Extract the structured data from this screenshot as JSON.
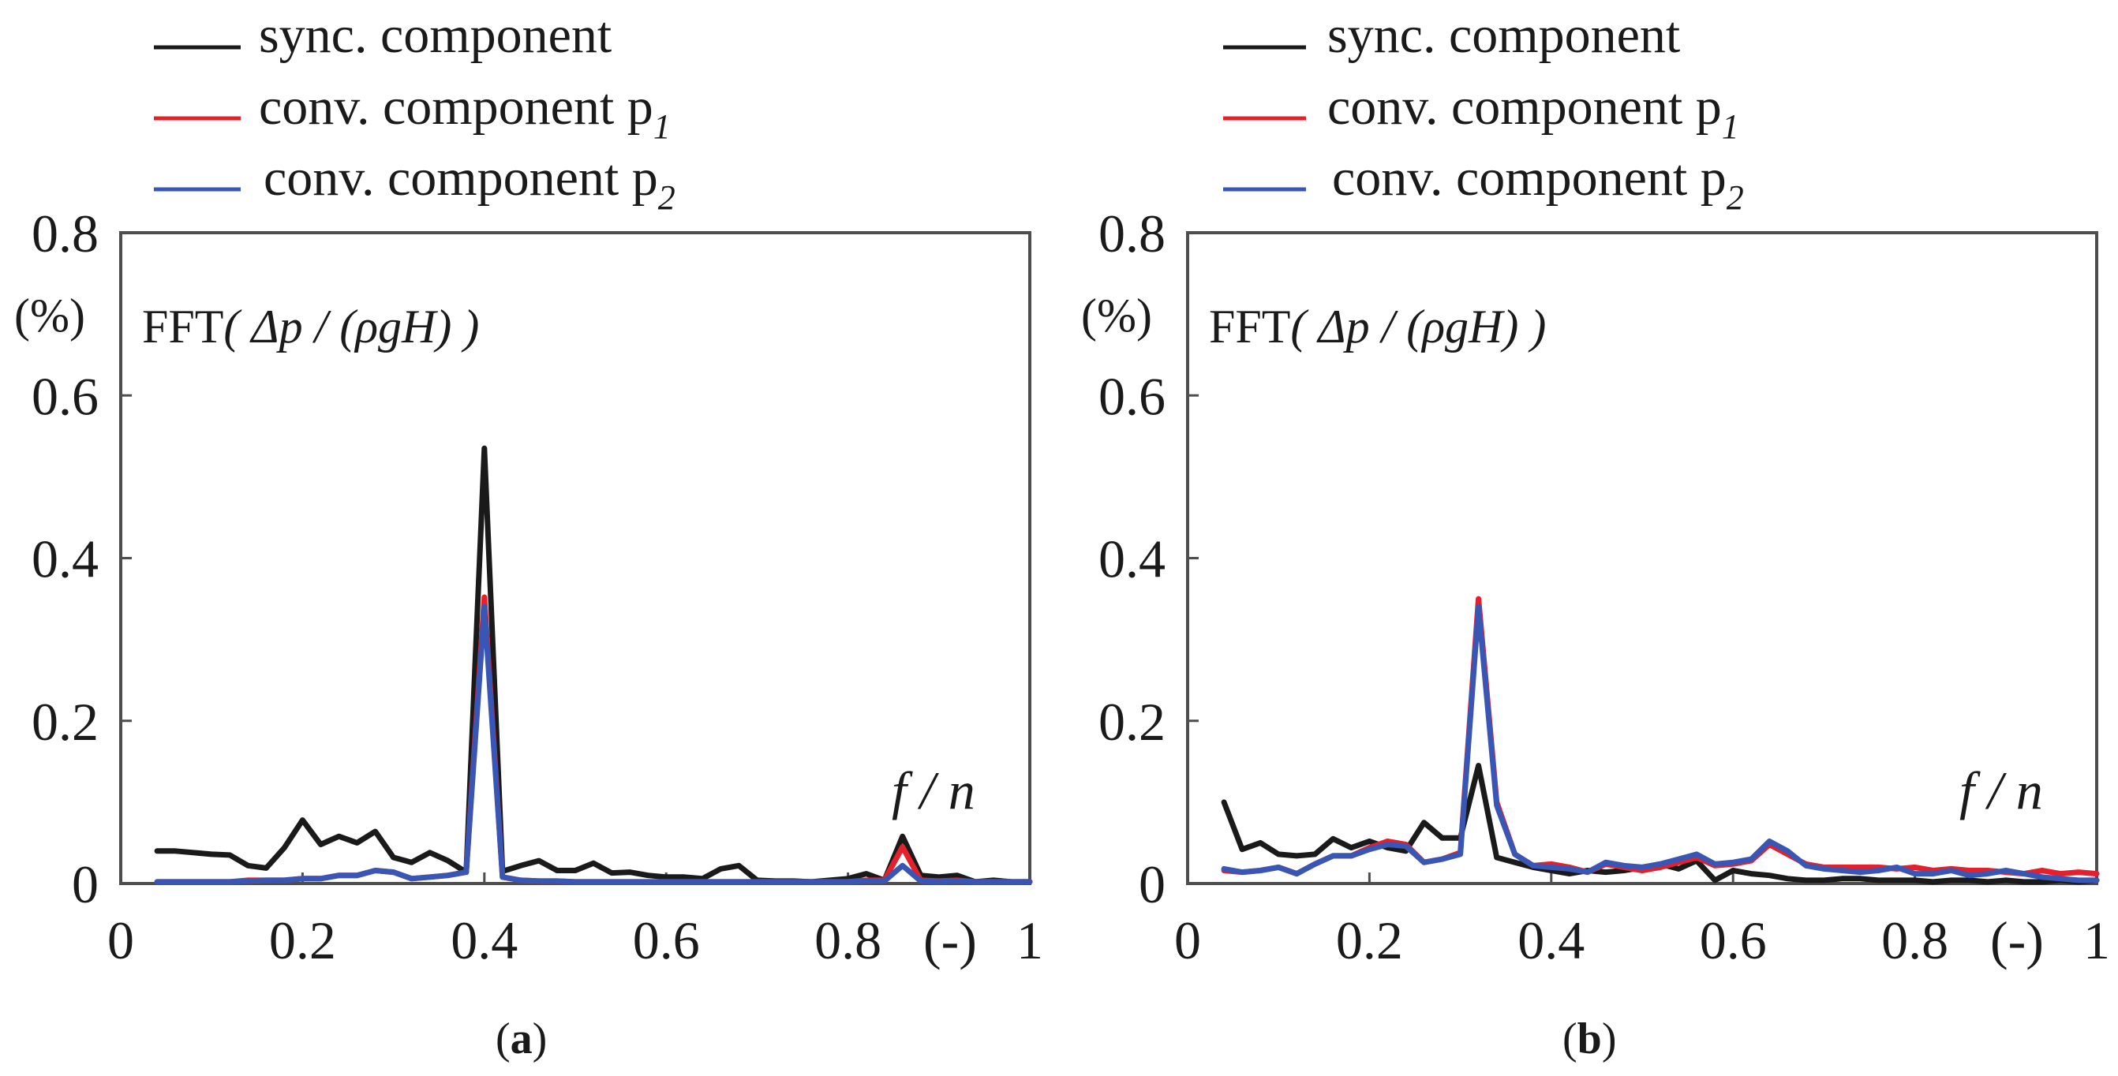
{
  "chart_data": [
    {
      "type": "line",
      "caption": "(a)",
      "caption_letter": "a",
      "legend": [
        "sync. component",
        "conv. component p",
        "conv. component p"
      ],
      "legend_sub": [
        "",
        "1",
        "2"
      ],
      "ylabel_unit": "(%)",
      "annotation_prefix": "FFT",
      "annotation_formula": "( Δp / (ρgH) )",
      "xlabel_italic": "f / n",
      "xlabel_unit": "(-)",
      "xlim": [
        0,
        1
      ],
      "ylim": [
        0,
        0.8
      ],
      "xticks": [
        0,
        0.2,
        0.4,
        0.6,
        0.8,
        1
      ],
      "xtick_labels": [
        "0",
        "0.2",
        "0.4",
        "0.6",
        "0.8",
        "1"
      ],
      "yticks": [
        0,
        0.2,
        0.4,
        0.6,
        0.8
      ],
      "ytick_labels": [
        "0",
        "0.2",
        "0.4",
        "0.6",
        "0.8"
      ],
      "x": [
        0.04,
        0.06,
        0.08,
        0.1,
        0.12,
        0.14,
        0.16,
        0.18,
        0.2,
        0.22,
        0.24,
        0.26,
        0.28,
        0.3,
        0.32,
        0.34,
        0.36,
        0.38,
        0.4,
        0.42,
        0.44,
        0.46,
        0.48,
        0.5,
        0.52,
        0.54,
        0.56,
        0.58,
        0.6,
        0.62,
        0.64,
        0.66,
        0.68,
        0.7,
        0.72,
        0.74,
        0.76,
        0.78,
        0.8,
        0.82,
        0.84,
        0.86,
        0.88,
        0.9,
        0.92,
        0.94,
        0.96,
        0.98,
        1.0
      ],
      "series": [
        {
          "name": "sync. component",
          "color": "#1a1a1a",
          "values": [
            0.04,
            0.04,
            0.038,
            0.036,
            0.035,
            0.022,
            0.019,
            0.044,
            0.078,
            0.048,
            0.058,
            0.05,
            0.064,
            0.032,
            0.026,
            0.038,
            0.028,
            0.014,
            0.535,
            0.015,
            0.022,
            0.028,
            0.016,
            0.016,
            0.025,
            0.013,
            0.014,
            0.01,
            0.008,
            0.008,
            0.006,
            0.018,
            0.022,
            0.004,
            0.003,
            0.003,
            0.002,
            0.004,
            0.006,
            0.012,
            0.004,
            0.058,
            0.01,
            0.008,
            0.01,
            0.002,
            0.004,
            0.002,
            0.002
          ]
        },
        {
          "name": "conv. component p1",
          "color": "#e3202b",
          "values": [
            0.002,
            0.002,
            0.002,
            0.002,
            0.002,
            0.004,
            0.004,
            0.004,
            0.006,
            0.006,
            0.01,
            0.01,
            0.016,
            0.014,
            0.006,
            0.008,
            0.01,
            0.014,
            0.352,
            0.008,
            0.004,
            0.003,
            0.003,
            0.002,
            0.002,
            0.002,
            0.002,
            0.002,
            0.002,
            0.002,
            0.002,
            0.002,
            0.002,
            0.002,
            0.002,
            0.002,
            0.002,
            0.002,
            0.002,
            0.004,
            0.004,
            0.045,
            0.004,
            0.003,
            0.004,
            0.002,
            0.002,
            0.002,
            0.002
          ]
        },
        {
          "name": "conv. component p2",
          "color": "#3a56b4",
          "values": [
            0.002,
            0.002,
            0.002,
            0.002,
            0.002,
            0.003,
            0.004,
            0.004,
            0.006,
            0.006,
            0.01,
            0.01,
            0.016,
            0.014,
            0.006,
            0.008,
            0.01,
            0.014,
            0.34,
            0.008,
            0.004,
            0.003,
            0.003,
            0.002,
            0.002,
            0.002,
            0.002,
            0.002,
            0.002,
            0.002,
            0.002,
            0.002,
            0.002,
            0.002,
            0.002,
            0.002,
            0.002,
            0.002,
            0.002,
            0.003,
            0.003,
            0.022,
            0.003,
            0.002,
            0.003,
            0.002,
            0.002,
            0.002,
            0.002
          ]
        }
      ]
    },
    {
      "type": "line",
      "caption": "(b)",
      "caption_letter": "b",
      "legend": [
        "sync. component",
        "conv. component p",
        "conv. component p"
      ],
      "legend_sub": [
        "",
        "1",
        "2"
      ],
      "ylabel_unit": "(%)",
      "annotation_prefix": "FFT",
      "annotation_formula": "( Δp / (ρgH) )",
      "xlabel_italic": "f / n",
      "xlabel_unit": "(-)",
      "xlim": [
        0,
        1
      ],
      "ylim": [
        0,
        0.8
      ],
      "xticks": [
        0,
        0.2,
        0.4,
        0.6,
        0.8,
        1
      ],
      "xtick_labels": [
        "0",
        "0.2",
        "0.4",
        "0.6",
        "0.8",
        "1"
      ],
      "yticks": [
        0,
        0.2,
        0.4,
        0.6,
        0.8
      ],
      "ytick_labels": [
        "0",
        "0.2",
        "0.4",
        "0.6",
        "0.8"
      ],
      "x": [
        0.04,
        0.06,
        0.08,
        0.1,
        0.12,
        0.14,
        0.16,
        0.18,
        0.2,
        0.22,
        0.24,
        0.26,
        0.28,
        0.3,
        0.32,
        0.34,
        0.36,
        0.38,
        0.4,
        0.42,
        0.44,
        0.46,
        0.48,
        0.5,
        0.52,
        0.54,
        0.56,
        0.58,
        0.6,
        0.62,
        0.64,
        0.66,
        0.68,
        0.7,
        0.72,
        0.74,
        0.76,
        0.78,
        0.8,
        0.82,
        0.84,
        0.86,
        0.88,
        0.9,
        0.92,
        0.94,
        0.96,
        0.98,
        1.0
      ],
      "series": [
        {
          "name": "sync. component",
          "color": "#1a1a1a",
          "values": [
            0.1,
            0.042,
            0.05,
            0.036,
            0.034,
            0.036,
            0.055,
            0.044,
            0.052,
            0.044,
            0.04,
            0.075,
            0.056,
            0.056,
            0.145,
            0.032,
            0.026,
            0.02,
            0.016,
            0.012,
            0.016,
            0.014,
            0.016,
            0.02,
            0.024,
            0.018,
            0.028,
            0.004,
            0.016,
            0.012,
            0.01,
            0.006,
            0.004,
            0.004,
            0.006,
            0.006,
            0.004,
            0.004,
            0.004,
            0.002,
            0.004,
            0.004,
            0.002,
            0.004,
            0.002,
            0.002,
            0.004,
            0.002,
            0.004
          ]
        },
        {
          "name": "conv. component p1",
          "color": "#e3202b",
          "values": [
            0.016,
            0.014,
            0.016,
            0.02,
            0.012,
            0.024,
            0.034,
            0.034,
            0.044,
            0.052,
            0.048,
            0.026,
            0.03,
            0.038,
            0.35,
            0.1,
            0.036,
            0.022,
            0.024,
            0.02,
            0.014,
            0.024,
            0.02,
            0.016,
            0.02,
            0.026,
            0.032,
            0.022,
            0.024,
            0.028,
            0.048,
            0.036,
            0.024,
            0.02,
            0.02,
            0.02,
            0.02,
            0.018,
            0.02,
            0.016,
            0.018,
            0.016,
            0.016,
            0.014,
            0.012,
            0.016,
            0.012,
            0.014,
            0.012
          ]
        },
        {
          "name": "conv. component p2",
          "color": "#3a56b4",
          "values": [
            0.018,
            0.014,
            0.016,
            0.02,
            0.012,
            0.024,
            0.034,
            0.034,
            0.042,
            0.048,
            0.046,
            0.026,
            0.03,
            0.036,
            0.34,
            0.096,
            0.036,
            0.022,
            0.02,
            0.018,
            0.014,
            0.026,
            0.022,
            0.02,
            0.024,
            0.03,
            0.036,
            0.024,
            0.026,
            0.03,
            0.052,
            0.04,
            0.022,
            0.018,
            0.016,
            0.014,
            0.016,
            0.02,
            0.012,
            0.012,
            0.016,
            0.01,
            0.012,
            0.016,
            0.012,
            0.008,
            0.006,
            0.004,
            0.004
          ]
        }
      ]
    }
  ]
}
